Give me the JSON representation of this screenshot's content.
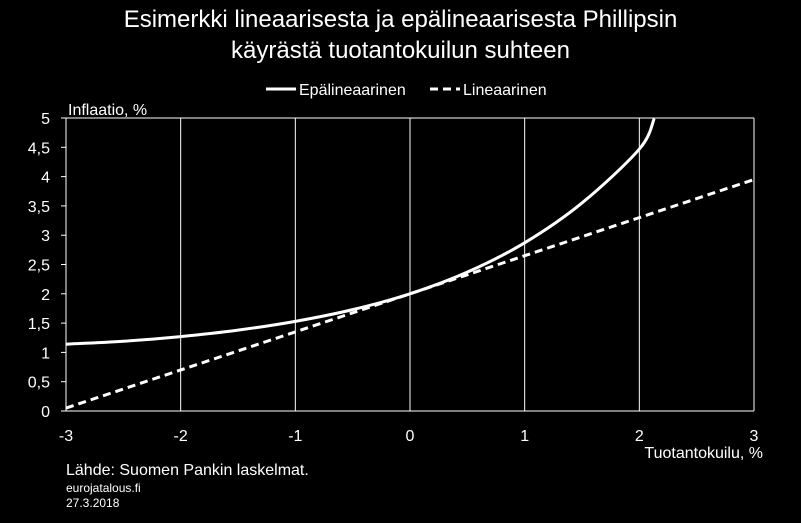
{
  "chart_data": {
    "type": "line",
    "title_lines": [
      "Esimerkki lineaarisesta ja epälineaarisesta Phillipsin",
      "käyrästä tuotantokuilun suhteen"
    ],
    "xlabel": "Tuotantokuilu, %",
    "ylabel": "Inflaatio, %",
    "xlim": [
      -3,
      3
    ],
    "ylim": [
      0,
      5
    ],
    "x_ticks": [
      -3,
      -2,
      -1,
      0,
      1,
      2,
      3
    ],
    "y_ticks": [
      0,
      0.5,
      1,
      1.5,
      2,
      2.5,
      3,
      3.5,
      4,
      4.5,
      5
    ],
    "x_tick_labels": [
      "-3",
      "-2",
      "-1",
      "0",
      "1",
      "2",
      "3"
    ],
    "y_tick_labels": [
      "0",
      "0,5",
      "1",
      "1,5",
      "2",
      "2,5",
      "3",
      "3,5",
      "4",
      "4,5",
      "5"
    ],
    "grid": "vertical",
    "legend_position": "top",
    "series": [
      {
        "name": "Epälineaarinen",
        "style": "solid",
        "color": "#ffffff",
        "x": [
          -3,
          -2.5,
          -2,
          -1.5,
          -1,
          -0.5,
          0,
          0.5,
          1,
          1.5,
          2,
          2.13
        ],
        "y": [
          1.14,
          1.19,
          1.27,
          1.38,
          1.53,
          1.73,
          2.0,
          2.37,
          2.87,
          3.55,
          4.47,
          4.99
        ]
      },
      {
        "name": "Lineaarinen",
        "style": "dashed",
        "color": "#ffffff",
        "x": [
          -3,
          -2,
          -1,
          0,
          1,
          2,
          3
        ],
        "y": [
          0.05,
          0.7,
          1.35,
          2.0,
          2.65,
          3.3,
          3.95
        ]
      }
    ]
  },
  "footer": {
    "source": "Lähde: Suomen Pankin laskelmat.",
    "site": "eurojatalous.fi",
    "date": "27.3.2018"
  },
  "colors": {
    "background": "#000000",
    "foreground": "#ffffff"
  }
}
